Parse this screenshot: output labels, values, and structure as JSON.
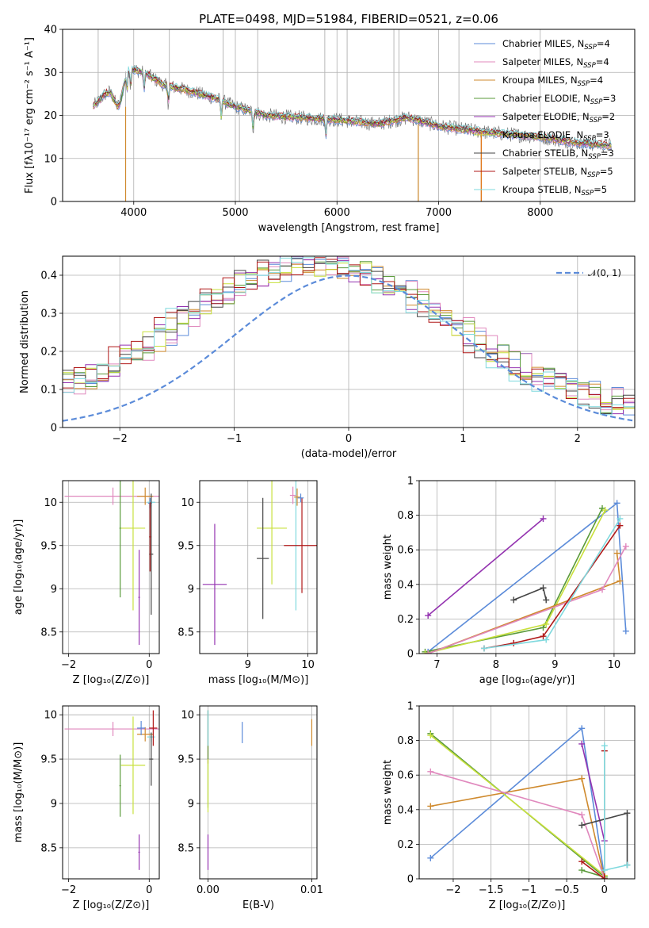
{
  "figure": {
    "title": "PLATE=0498, MJD=51984, FIBERID=0521, z=0.06"
  },
  "colors": {
    "Chabrier MILES": "#5b8bd9",
    "Salpeter MILES": "#e088bd",
    "Kroupa MILES": "#cf8a2e",
    "Chabrier ELODIE": "#5a9a3a",
    "Salpeter ELODIE": "#9433b0",
    "Kroupa ELODIE": "#c8e03c",
    "Chabrier STELIB": "#454545",
    "Salpeter STELIB": "#b01818",
    "Kroupa STELIB": "#7fd9de",
    "data": "#8c8c8c",
    "orange": "#e07a1e",
    "normal": "#5b8bd9"
  },
  "legend_spectrum": [
    {
      "key": "Chabrier MILES",
      "label": "Chabrier MILES, N",
      "sub": "SSP",
      "tail": "=4"
    },
    {
      "key": "Salpeter MILES",
      "label": "Salpeter MILES, N",
      "sub": "SSP",
      "tail": "=4"
    },
    {
      "key": "Kroupa MILES",
      "label": "Kroupa MILES, N",
      "sub": "SSP",
      "tail": "=4"
    },
    {
      "key": "Chabrier ELODIE",
      "label": "Chabrier ELODIE, N",
      "sub": "SSP",
      "tail": "=3"
    },
    {
      "key": "Salpeter ELODIE",
      "label": "Salpeter ELODIE, N",
      "sub": "SSP",
      "tail": "=2"
    },
    {
      "key": "Kroupa ELODIE",
      "label": "Kroupa ELODIE, N",
      "sub": "SSP",
      "tail": "=3"
    },
    {
      "key": "Chabrier STELIB",
      "label": "Chabrier STELIB, N",
      "sub": "SSP",
      "tail": "=3"
    },
    {
      "key": "Salpeter STELIB",
      "label": "Salpeter STELIB, N",
      "sub": "SSP",
      "tail": "=5"
    },
    {
      "key": "Kroupa STELIB",
      "label": "Kroupa STELIB, N",
      "sub": "SSP",
      "tail": "=5"
    }
  ],
  "chart_data": [
    {
      "id": "spectrum",
      "type": "line",
      "xlabel": "wavelength [Angstrom, rest frame]",
      "ylabel": "Flux [fλ10⁻¹⁷ erg cm⁻² s⁻¹ A⁻¹]",
      "xlim": [
        3300,
        8930
      ],
      "ylim": [
        0,
        40
      ],
      "xticks": [
        4000,
        5000,
        6000,
        7000,
        8000
      ],
      "yticks": [
        0,
        10,
        20,
        30,
        40
      ],
      "continuum": [
        [
          3600,
          22
        ],
        [
          3800,
          27
        ],
        [
          3950,
          31
        ],
        [
          4100,
          30
        ],
        [
          4300,
          27
        ],
        [
          4500,
          26
        ],
        [
          4800,
          24
        ],
        [
          5000,
          22
        ],
        [
          5300,
          20
        ],
        [
          5600,
          19.5
        ],
        [
          6000,
          19
        ],
        [
          6400,
          18
        ],
        [
          6700,
          19.5
        ],
        [
          7000,
          17.5
        ],
        [
          7500,
          16
        ],
        [
          8000,
          15
        ],
        [
          8400,
          13.5
        ],
        [
          8700,
          13
        ]
      ]
    },
    {
      "id": "residuals",
      "type": "line",
      "xlabel": "(data-model)/error",
      "ylabel": "Normed distribution",
      "xlim": [
        -2.5,
        2.5
      ],
      "ylim": [
        0,
        0.45
      ],
      "xticks": [
        -2,
        -1,
        0,
        1,
        2
      ],
      "yticks": [
        0.0,
        0.1,
        0.2,
        0.3,
        0.4
      ],
      "legend": "𝒩(0, 1)",
      "normal": {
        "mean": 0,
        "sigma": 1
      }
    },
    {
      "id": "age_vs_Z",
      "type": "scatter",
      "xlabel": "Z [log₁₀(Z/Z⊙)]",
      "ylabel": "age  [log₁₀(age/yr)]",
      "xlim": [
        -2.15,
        0.25
      ],
      "ylim": [
        8.25,
        10.25
      ],
      "xticks": [
        -2,
        0
      ],
      "yticks": [
        8.5,
        9.0,
        9.5,
        10.0
      ],
      "points": [
        {
          "key": "Salpeter MILES",
          "x": -0.9,
          "y": 10.07,
          "xerr": 1.2,
          "yerr": 0.1
        },
        {
          "key": "Kroupa MILES",
          "x": -0.1,
          "y": 10.07,
          "xerr": 0.2,
          "yerr": 0.1
        },
        {
          "key": "Chabrier MILES",
          "x": 0.02,
          "y": 9.99,
          "xerr": 0.05,
          "yerr": 0.06
        },
        {
          "key": "Kroupa STELIB",
          "x": 0.05,
          "y": 10.0,
          "xerr": 0.1,
          "yerr": 0.05
        },
        {
          "key": "Kroupa ELODIE",
          "x": -0.4,
          "y": 9.7,
          "xerr": 0.3,
          "yerr": 0.95
        },
        {
          "key": "Chabrier ELODIE",
          "x": -0.72,
          "y": 9.7,
          "xerr": 0.02,
          "yerr": 0.8
        },
        {
          "key": "Salpeter ELODIE",
          "x": -0.25,
          "y": 8.9,
          "xerr": 0.02,
          "yerr": 0.55
        },
        {
          "key": "Chabrier STELIB",
          "x": 0.05,
          "y": 9.4,
          "xerr": 0.05,
          "yerr": 0.7
        },
        {
          "key": "Salpeter STELIB",
          "x": 0.02,
          "y": 9.6,
          "xerr": 0.02,
          "yerr": 0.4
        }
      ]
    },
    {
      "id": "age_vs_mass",
      "type": "scatter",
      "xlabel": "mass [log₁₀(M/M⊙)]",
      "ylabel": "",
      "xlim": [
        8.2,
        10.15
      ],
      "ylim": [
        8.25,
        10.25
      ],
      "xticks": [
        9,
        10
      ],
      "yticks": [
        8.5,
        9.0,
        9.5,
        10.0
      ],
      "points": [
        {
          "key": "Salpeter ELODIE",
          "x": 8.45,
          "y": 9.05,
          "xerr": 0.2,
          "yerr": 0.7
        },
        {
          "key": "Kroupa ELODIE",
          "x": 9.4,
          "y": 9.7,
          "xerr": 0.25,
          "yerr": 0.65
        },
        {
          "key": "Chabrier STELIB",
          "x": 9.25,
          "y": 9.35,
          "xerr": 0.1,
          "yerr": 0.7
        },
        {
          "key": "Kroupa STELIB",
          "x": 9.8,
          "y": 9.5,
          "xerr": 0.02,
          "yerr": 0.75
        },
        {
          "key": "Salpeter STELIB",
          "x": 9.9,
          "y": 9.5,
          "xerr": 0.3,
          "yerr": 0.55
        },
        {
          "key": "Salpeter MILES",
          "x": 9.75,
          "y": 10.08,
          "xerr": 0.05,
          "yerr": 0.1
        },
        {
          "key": "Kroupa MILES",
          "x": 9.82,
          "y": 10.06,
          "xerr": 0.05,
          "yerr": 0.1
        },
        {
          "key": "Chabrier MILES",
          "x": 9.88,
          "y": 10.05,
          "xerr": 0.05,
          "yerr": 0.05
        }
      ]
    },
    {
      "id": "weight_vs_age",
      "type": "line",
      "xlabel": "age  [log₁₀(age/yr)]",
      "ylabel": "mass weight",
      "xlim": [
        6.7,
        10.35
      ],
      "ylim": [
        0,
        1
      ],
      "xticks": [
        7,
        8,
        9,
        10
      ],
      "yticks": [
        0.0,
        0.2,
        0.4,
        0.6,
        0.8,
        1.0
      ],
      "series": [
        {
          "key": "Salpeter ELODIE",
          "x": [
            6.85,
            8.8
          ],
          "y": [
            0.22,
            0.78
          ]
        },
        {
          "key": "Chabrier MILES",
          "x": [
            6.85,
            10.05,
            10.2
          ],
          "y": [
            0.01,
            0.87,
            0.13
          ]
        },
        {
          "key": "Chabrier ELODIE",
          "x": [
            6.8,
            8.8,
            9.8
          ],
          "y": [
            0.01,
            0.15,
            0.84
          ]
        },
        {
          "key": "Kroupa ELODIE",
          "x": [
            6.8,
            8.85,
            9.85
          ],
          "y": [
            0.0,
            0.17,
            0.83
          ]
        },
        {
          "key": "Kroupa MILES",
          "x": [
            6.85,
            10.1,
            10.05
          ],
          "y": [
            0.0,
            0.42,
            0.58
          ]
        },
        {
          "key": "Salpeter MILES",
          "x": [
            6.85,
            9.8,
            10.2
          ],
          "y": [
            0.0,
            0.37,
            0.62
          ]
        },
        {
          "key": "Chabrier STELIB",
          "x": [
            8.3,
            8.8,
            8.85
          ],
          "y": [
            0.31,
            0.38,
            0.31
          ]
        },
        {
          "key": "Salpeter STELIB",
          "x": [
            7.8,
            8.3,
            8.8,
            10.1
          ],
          "y": [
            0.03,
            0.06,
            0.1,
            0.74
          ]
        },
        {
          "key": "Kroupa STELIB",
          "x": [
            7.8,
            8.85,
            10.1
          ],
          "y": [
            0.03,
            0.08,
            0.78
          ]
        }
      ]
    },
    {
      "id": "mass_vs_Z",
      "type": "scatter",
      "xlabel": "Z [log₁₀(Z/Z⊙)]",
      "ylabel": "mass [log₁₀(M/M⊙)]",
      "xlim": [
        -2.15,
        0.25
      ],
      "ylim": [
        8.15,
        10.1
      ],
      "xticks": [
        -2,
        0
      ],
      "yticks": [
        8.5,
        9.0,
        9.5,
        10.0
      ],
      "points": [
        {
          "key": "Salpeter MILES",
          "x": -0.9,
          "y": 9.84,
          "xerr": 1.2,
          "yerr": 0.08
        },
        {
          "key": "Kroupa MILES",
          "x": -0.1,
          "y": 9.78,
          "xerr": 0.2,
          "yerr": 0.08
        },
        {
          "key": "Chabrier MILES",
          "x": -0.2,
          "y": 9.85,
          "xerr": 0.1,
          "yerr": 0.08
        },
        {
          "key": "Kroupa STELIB",
          "x": 0.05,
          "y": 9.75,
          "xerr": 0.1,
          "yerr": 0.05
        },
        {
          "key": "Salpeter STELIB",
          "x": 0.1,
          "y": 9.85,
          "xerr": 0.1,
          "yerr": 0.2
        },
        {
          "key": "Kroupa ELODIE",
          "x": -0.4,
          "y": 9.43,
          "xerr": 0.3,
          "yerr": 0.55
        },
        {
          "key": "Chabrier ELODIE",
          "x": -0.72,
          "y": 9.2,
          "xerr": 0.02,
          "yerr": 0.35
        },
        {
          "key": "Chabrier STELIB",
          "x": 0.05,
          "y": 9.5,
          "xerr": 0.05,
          "yerr": 0.3
        },
        {
          "key": "Salpeter ELODIE",
          "x": -0.25,
          "y": 8.45,
          "xerr": 0.02,
          "yerr": 0.2
        }
      ]
    },
    {
      "id": "mass_vs_ebv",
      "type": "scatter",
      "xlabel": "E(B-V)",
      "ylabel": "",
      "xlim": [
        -0.0008,
        0.0105
      ],
      "ylim": [
        8.15,
        10.1
      ],
      "xticks": [
        0.0,
        0.01
      ],
      "yticks": [
        8.5,
        9.0,
        9.5,
        10.0
      ],
      "points": [
        {
          "key": "Salpeter STELIB",
          "x": 0.0,
          "y": 9.75,
          "xerr": 0,
          "yerr": 0.3
        },
        {
          "key": "Chabrier ELODIE",
          "x": 0.0,
          "y": 9.5,
          "xerr": 0,
          "yerr": 0.55
        },
        {
          "key": "Kroupa ELODIE",
          "x": 0.0,
          "y": 9.2,
          "xerr": 0,
          "yerr": 0.3
        },
        {
          "key": "Salpeter ELODIE",
          "x": 0.0,
          "y": 8.45,
          "xerr": 0,
          "yerr": 0.2
        },
        {
          "key": "Kroupa STELIB",
          "x": 0.0,
          "y": 9.85,
          "xerr": 0,
          "yerr": 0.2
        },
        {
          "key": "Chabrier MILES",
          "x": 0.0033,
          "y": 9.8,
          "xerr": 0,
          "yerr": 0.12
        },
        {
          "key": "Kroupa MILES",
          "x": 0.01,
          "y": 9.8,
          "xerr": 0,
          "yerr": 0.15
        }
      ]
    },
    {
      "id": "weight_vs_Z",
      "type": "line",
      "xlabel": "Z [log₁₀(Z/Z⊙)]",
      "ylabel": "mass weight",
      "xlim": [
        -2.45,
        0.4
      ],
      "ylim": [
        0,
        1
      ],
      "xticks": [
        -2.0,
        -1.5,
        -1.0,
        -0.5,
        0.0
      ],
      "yticks": [
        0.0,
        0.2,
        0.4,
        0.6,
        0.8,
        1.0
      ],
      "series": [
        {
          "key": "Chabrier MILES",
          "x": [
            -2.3,
            -0.3,
            0.0
          ],
          "y": [
            0.12,
            0.87,
            0.01
          ]
        },
        {
          "key": "Chabrier ELODIE",
          "x": [
            -2.3,
            0.0,
            -0.3
          ],
          "y": [
            0.84,
            0.01,
            0.05
          ]
        },
        {
          "key": "Kroupa ELODIE",
          "x": [
            -2.3,
            0.0
          ],
          "y": [
            0.83,
            0.02
          ]
        },
        {
          "key": "Kroupa MILES",
          "x": [
            -2.3,
            -0.3,
            0.0
          ],
          "y": [
            0.42,
            0.58,
            0.0
          ]
        },
        {
          "key": "Salpeter MILES",
          "x": [
            -2.3,
            -0.3,
            0.0
          ],
          "y": [
            0.62,
            0.37,
            0.0
          ]
        },
        {
          "key": "Salpeter ELODIE",
          "x": [
            -0.3,
            0.0
          ],
          "y": [
            0.78,
            0.22
          ]
        },
        {
          "key": "Chabrier STELIB",
          "x": [
            -0.3,
            0.3,
            0.3
          ],
          "y": [
            0.31,
            0.38,
            0.08
          ]
        },
        {
          "key": "Salpeter STELIB",
          "x": [
            -0.3,
            0.0,
            0.0
          ],
          "y": [
            0.1,
            0.0,
            0.74
          ]
        },
        {
          "key": "Kroupa STELIB",
          "x": [
            0.0,
            0.0,
            0.3
          ],
          "y": [
            0.77,
            0.05,
            0.08
          ]
        }
      ]
    }
  ]
}
